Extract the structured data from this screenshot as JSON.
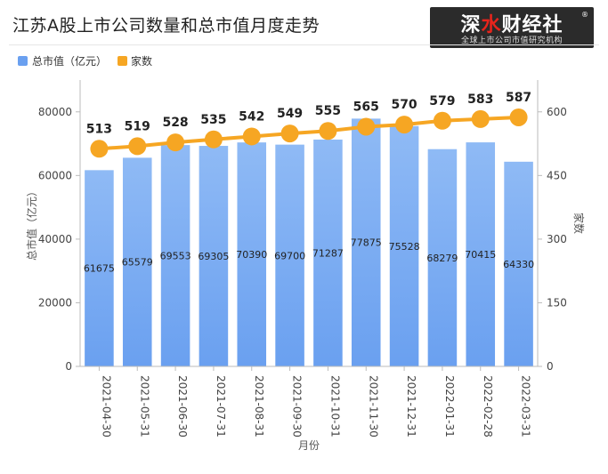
{
  "title": "江苏A股上市公司数量和总市值月度走势",
  "logo": {
    "main_a": "深",
    "main_b": "水",
    "main_c": "财经社",
    "reg": "®",
    "sub": "全球上市公司市值研究机构"
  },
  "colors": {
    "bar": "#6aa0f0",
    "bar_top": "#8fbaf5",
    "line": "#f6a623",
    "grid": "#e8e8e8",
    "axis_text": "#444"
  },
  "chart_data": {
    "type": "bar+line",
    "categories": [
      "2021-04-30",
      "2021-05-31",
      "2021-06-30",
      "2021-07-31",
      "2021-08-31",
      "2021-09-30",
      "2021-10-31",
      "2021-11-30",
      "2021-12-31",
      "2022-01-31",
      "2022-02-28",
      "2022-03-31"
    ],
    "series": [
      {
        "name": "总市值（亿元）",
        "type": "bar",
        "axis": "left",
        "values": [
          61675,
          65579,
          69553,
          69305,
          70390,
          69700,
          71287,
          77875,
          75528,
          68279,
          70415,
          64330
        ]
      },
      {
        "name": "家数",
        "type": "line",
        "axis": "right",
        "values": [
          513,
          519,
          528,
          535,
          542,
          549,
          555,
          565,
          570,
          579,
          583,
          587
        ]
      }
    ],
    "xlabel": "月份",
    "ylabel": "总市值（亿元）",
    "y2label": "家数",
    "ylim": [
      0,
      90000
    ],
    "yticks": [
      0,
      20000,
      40000,
      60000,
      80000
    ],
    "y2lim": [
      0,
      675
    ],
    "y2ticks": [
      0,
      150,
      300,
      450,
      600
    ],
    "legend": "top-left",
    "grid": false
  }
}
